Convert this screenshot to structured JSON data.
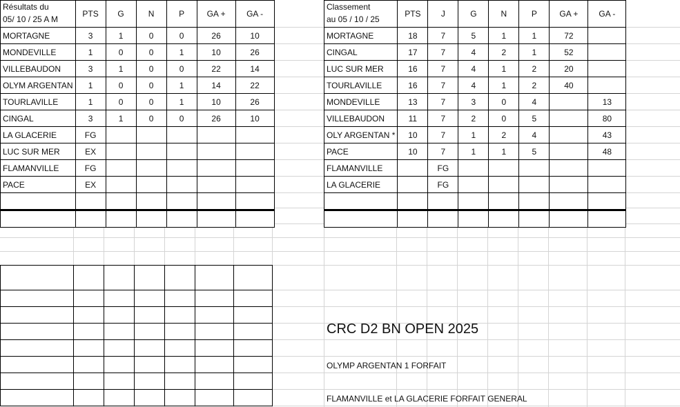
{
  "results": {
    "header_line1": "Résultats du",
    "header_line2": "05/ 10 / 25 A M",
    "columns": [
      "PTS",
      "G",
      "N",
      "P",
      "GA +",
      "GA -"
    ],
    "rows": [
      [
        "MORTAGNE",
        "3",
        "1",
        "0",
        "0",
        "26",
        "10"
      ],
      [
        "MONDEVILLE",
        "1",
        "0",
        "0",
        "1",
        "10",
        "26"
      ],
      [
        "VILLEBAUDON",
        "3",
        "1",
        "0",
        "0",
        "22",
        "14"
      ],
      [
        "OLYM ARGENTAN",
        "1",
        "0",
        "0",
        "1",
        "14",
        "22"
      ],
      [
        "TOURLAVILLE",
        "1",
        "0",
        "0",
        "1",
        "10",
        "26"
      ],
      [
        "CINGAL",
        "3",
        "1",
        "0",
        "0",
        "26",
        "10"
      ],
      [
        "LA GLACERIE",
        "FG",
        "",
        "",
        "",
        "",
        ""
      ],
      [
        "LUC SUR MER",
        "EX",
        "",
        "",
        "",
        "",
        ""
      ],
      [
        "FLAMANVILLE",
        "FG",
        "",
        "",
        "",
        "",
        ""
      ],
      [
        "PACE",
        "EX",
        "",
        "",
        "",
        "",
        ""
      ],
      [
        "",
        "",
        "",
        "",
        "",
        "",
        ""
      ],
      [
        "",
        "",
        "",
        "",
        "",
        "",
        ""
      ]
    ]
  },
  "standings": {
    "header_line1": "Classement",
    "header_line2": "au 05 / 10 / 25",
    "columns": [
      "PTS",
      "J",
      "G",
      "N",
      "P",
      "GA +",
      "GA -"
    ],
    "rows": [
      [
        "MORTAGNE",
        "18",
        "7",
        "5",
        "1",
        "1",
        "72",
        ""
      ],
      [
        "CINGAL",
        "17",
        "7",
        "4",
        "2",
        "1",
        "52",
        ""
      ],
      [
        "LUC SUR MER",
        "16",
        "7",
        "4",
        "1",
        "2",
        "20",
        ""
      ],
      [
        "TOURLAVILLE",
        "16",
        "7",
        "4",
        "1",
        "2",
        "40",
        ""
      ],
      [
        "MONDEVILLE",
        "13",
        "7",
        "3",
        "0",
        "4",
        "",
        "13"
      ],
      [
        "VILLEBAUDON",
        "11",
        "7",
        "2",
        "0",
        "5",
        "",
        "80"
      ],
      [
        "OLY ARGENTAN *",
        "10",
        "7",
        "1",
        "2",
        "4",
        "",
        "43"
      ],
      [
        "PACE",
        "10",
        "7",
        "1",
        "1",
        "5",
        "",
        "48"
      ],
      [
        "FLAMANVILLE",
        "",
        "FG",
        "",
        "",
        "",
        "",
        ""
      ],
      [
        "LA GLACERIE",
        "",
        "FG",
        "",
        "",
        "",
        "",
        ""
      ],
      [
        "",
        "",
        "",
        "",
        "",
        "",
        "",
        ""
      ],
      [
        "",
        "",
        "",
        "",
        "",
        "",
        "",
        ""
      ]
    ]
  },
  "notes": {
    "title": "CRC D2 BN OPEN 2025",
    "forfeit": "OLYMP ARGENTAN 1 FORFAIT",
    "general_forfeit": "FLAMANVILLE et LA GLACERIE  FORFAIT GENERAL"
  }
}
